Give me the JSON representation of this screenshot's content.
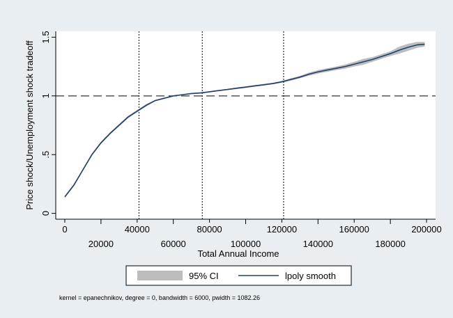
{
  "chart_data": {
    "type": "line",
    "title": "",
    "xlabel": "Total Annual Income",
    "ylabel": "Price shock/Unemployment shock tradeoff",
    "xlim": [
      -5000,
      205000
    ],
    "ylim": [
      -0.05,
      1.55
    ],
    "xticks_lower": [
      "0",
      "40000",
      "80000",
      "120000",
      "160000",
      "200000"
    ],
    "xticks_upper": [
      "20000",
      "60000",
      "100000",
      "140000",
      "180000"
    ],
    "yticks": [
      "0",
      ".5",
      "1",
      "1.5"
    ],
    "grid": false,
    "reference_lines": {
      "horizontal_dashed_y": 1,
      "vertical_dotted_x": [
        41000,
        76000,
        121000
      ]
    },
    "series": [
      {
        "name": "lpoly smooth",
        "color": "#1f3f6e",
        "x": [
          0,
          5000,
          10000,
          15000,
          20000,
          25000,
          30000,
          35000,
          40000,
          45000,
          50000,
          55000,
          60000,
          65000,
          70000,
          75000,
          80000,
          85000,
          90000,
          95000,
          100000,
          105000,
          110000,
          115000,
          120000,
          125000,
          130000,
          135000,
          140000,
          145000,
          150000,
          155000,
          160000,
          165000,
          170000,
          175000,
          180000,
          185000,
          190000,
          195000,
          199000
        ],
        "y": [
          0.14,
          0.24,
          0.37,
          0.5,
          0.6,
          0.68,
          0.75,
          0.82,
          0.87,
          0.92,
          0.96,
          0.98,
          1.0,
          1.01,
          1.02,
          1.025,
          1.035,
          1.045,
          1.055,
          1.065,
          1.075,
          1.085,
          1.095,
          1.105,
          1.12,
          1.14,
          1.16,
          1.185,
          1.205,
          1.22,
          1.235,
          1.25,
          1.27,
          1.29,
          1.31,
          1.335,
          1.36,
          1.39,
          1.415,
          1.435,
          1.44
        ]
      }
    ],
    "ci_band": {
      "name": "95% CI",
      "color": "#bdbdbd",
      "lower": [
        0.13,
        0.23,
        0.36,
        0.49,
        0.59,
        0.67,
        0.74,
        0.81,
        0.86,
        0.91,
        0.955,
        0.975,
        0.995,
        1.005,
        1.015,
        1.02,
        1.03,
        1.04,
        1.05,
        1.058,
        1.068,
        1.078,
        1.088,
        1.098,
        1.112,
        1.13,
        1.15,
        1.172,
        1.19,
        1.205,
        1.22,
        1.232,
        1.25,
        1.265,
        1.29,
        1.315,
        1.34,
        1.36,
        1.385,
        1.41,
        1.42
      ],
      "upper": [
        0.15,
        0.25,
        0.38,
        0.51,
        0.61,
        0.69,
        0.76,
        0.83,
        0.88,
        0.93,
        0.965,
        0.985,
        1.005,
        1.015,
        1.025,
        1.03,
        1.04,
        1.05,
        1.06,
        1.072,
        1.082,
        1.092,
        1.102,
        1.112,
        1.128,
        1.15,
        1.17,
        1.198,
        1.22,
        1.235,
        1.25,
        1.268,
        1.29,
        1.315,
        1.33,
        1.355,
        1.38,
        1.42,
        1.445,
        1.46,
        1.46
      ]
    },
    "legend": {
      "position": "bottom",
      "items": [
        {
          "label": "95% CI",
          "kind": "area"
        },
        {
          "label": "lpoly smooth",
          "kind": "line"
        }
      ]
    },
    "note": "kernel = epanechnikov, degree = 0, bandwidth = 6000, pwidth = 1082.26"
  }
}
